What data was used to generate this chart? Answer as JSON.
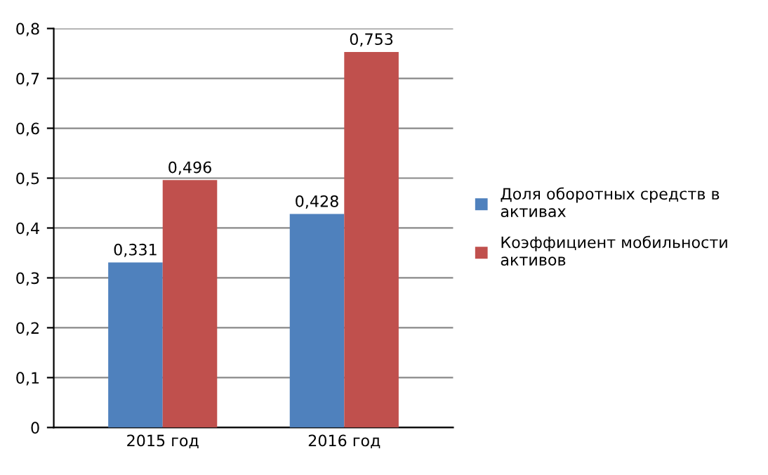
{
  "chart_data": {
    "type": "bar",
    "categories": [
      "2015 год",
      "2016 год"
    ],
    "series": [
      {
        "name": "Доля оборотных средств в активах",
        "color": "#4f81bd",
        "values": [
          0.331,
          0.428
        ],
        "value_labels": [
          "0,331",
          "0,428"
        ]
      },
      {
        "name": "Коэффициент мобильности активов",
        "color": "#c0504d",
        "values": [
          0.496,
          0.753
        ],
        "value_labels": [
          "0,496",
          "0,753"
        ]
      }
    ],
    "ylim": [
      0,
      0.8
    ],
    "yticks": [
      {
        "value": 0,
        "label": "0"
      },
      {
        "value": 0.1,
        "label": "0,1"
      },
      {
        "value": 0.2,
        "label": "0,2"
      },
      {
        "value": 0.3,
        "label": "0,3"
      },
      {
        "value": 0.4,
        "label": "0,4"
      },
      {
        "value": 0.5,
        "label": "0,5"
      },
      {
        "value": 0.6,
        "label": "0,6"
      },
      {
        "value": 0.7,
        "label": "0,7"
      },
      {
        "value": 0.8,
        "label": "0,8"
      }
    ],
    "grid": "y",
    "legend": "right"
  }
}
